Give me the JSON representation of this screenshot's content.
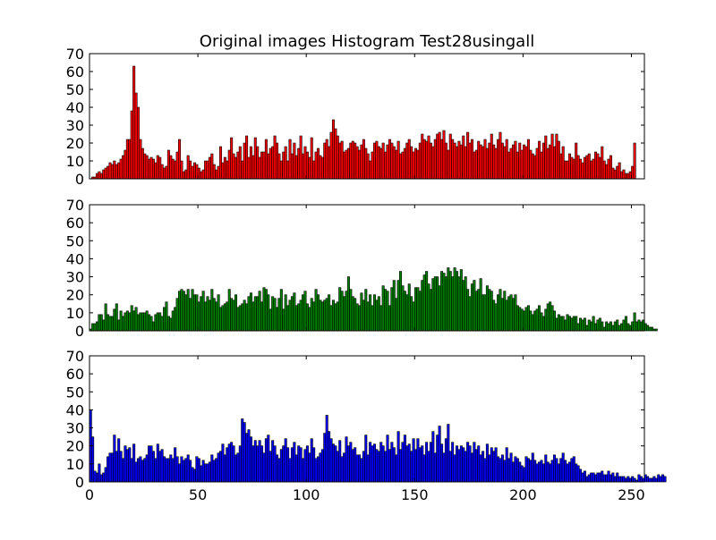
{
  "title": "Original images Histogram Test28usingall",
  "chart_data": [
    {
      "type": "bar",
      "color": "#ff0000",
      "edgecolor": "#000000",
      "xlim": [
        0,
        256
      ],
      "ylim": [
        0,
        70
      ],
      "yticks": [
        "0",
        "10",
        "20",
        "30",
        "40",
        "50",
        "60",
        "70"
      ],
      "xticks": [],
      "values": [
        0,
        1,
        1,
        3,
        4,
        3,
        5,
        6,
        7,
        9,
        8,
        10,
        8,
        9,
        11,
        13,
        16,
        22,
        22,
        38,
        63,
        48,
        40,
        22,
        17,
        14,
        13,
        11,
        12,
        11,
        9,
        13,
        12,
        8,
        6,
        7,
        16,
        13,
        11,
        10,
        15,
        22,
        10,
        4,
        5,
        13,
        10,
        7,
        9,
        8,
        6,
        4,
        5,
        10,
        10,
        12,
        14,
        8,
        5,
        7,
        18,
        9,
        12,
        10,
        16,
        23,
        14,
        12,
        15,
        18,
        10,
        20,
        24,
        12,
        18,
        13,
        23,
        18,
        12,
        15,
        15,
        22,
        14,
        17,
        18,
        24,
        20,
        14,
        10,
        15,
        18,
        10,
        22,
        14,
        20,
        13,
        17,
        24,
        14,
        18,
        15,
        12,
        23,
        10,
        15,
        17,
        13,
        12,
        20,
        22,
        18,
        26,
        33,
        28,
        24,
        20,
        21,
        15,
        16,
        17,
        20,
        21,
        20,
        18,
        16,
        19,
        22,
        17,
        14,
        10,
        15,
        20,
        21,
        18,
        17,
        20,
        15,
        19,
        22,
        20,
        18,
        16,
        21,
        14,
        15,
        17,
        20,
        22,
        18,
        15,
        17,
        16,
        20,
        25,
        22,
        21,
        24,
        20,
        18,
        22,
        25,
        26,
        22,
        27,
        20,
        16,
        25,
        22,
        20,
        18,
        21,
        19,
        24,
        18,
        26,
        20,
        22,
        15,
        16,
        21,
        19,
        18,
        22,
        17,
        20,
        25,
        19,
        17,
        22,
        26,
        20,
        18,
        22,
        15,
        17,
        19,
        21,
        15,
        20,
        16,
        19,
        18,
        22,
        16,
        14,
        13,
        17,
        21,
        15,
        20,
        24,
        17,
        19,
        25,
        18,
        25,
        21,
        14,
        18,
        10,
        10,
        14,
        12,
        11,
        20,
        13,
        11,
        9,
        12,
        13,
        14,
        10,
        11,
        15,
        14,
        12,
        18,
        10,
        8,
        11,
        13,
        6,
        5,
        7,
        9,
        4,
        5,
        3,
        3,
        4,
        7,
        20
      ]
    },
    {
      "type": "bar",
      "color": "#008000",
      "edgecolor": "#000000",
      "xlim": [
        0,
        256
      ],
      "ylim": [
        0,
        70
      ],
      "yticks": [
        "0",
        "10",
        "20",
        "30",
        "40",
        "50",
        "60",
        "70"
      ],
      "xticks": [],
      "values": [
        1,
        4,
        4,
        5,
        9,
        9,
        6,
        15,
        9,
        8,
        8,
        12,
        15,
        6,
        11,
        8,
        10,
        11,
        10,
        14,
        11,
        13,
        9,
        10,
        10,
        10,
        11,
        9,
        8,
        5,
        9,
        10,
        10,
        8,
        13,
        16,
        8,
        7,
        11,
        13,
        18,
        22,
        23,
        22,
        20,
        23,
        18,
        23,
        20,
        20,
        16,
        19,
        22,
        16,
        19,
        17,
        23,
        18,
        16,
        20,
        13,
        14,
        15,
        16,
        23,
        18,
        17,
        20,
        13,
        14,
        15,
        17,
        15,
        19,
        21,
        16,
        19,
        19,
        22,
        16,
        24,
        23,
        20,
        12,
        19,
        18,
        13,
        18,
        23,
        12,
        20,
        14,
        17,
        19,
        21,
        14,
        15,
        17,
        20,
        22,
        15,
        13,
        18,
        16,
        23,
        20,
        17,
        16,
        17,
        18,
        20,
        14,
        17,
        15,
        16,
        24,
        22,
        19,
        22,
        30,
        23,
        19,
        18,
        15,
        14,
        21,
        17,
        23,
        16,
        20,
        14,
        20,
        17,
        19,
        14,
        25,
        23,
        22,
        14,
        24,
        28,
        18,
        28,
        33,
        25,
        22,
        20,
        26,
        19,
        16,
        24,
        24,
        22,
        28,
        31,
        33,
        26,
        23,
        29,
        30,
        30,
        25,
        33,
        32,
        30,
        35,
        33,
        30,
        35,
        33,
        30,
        34,
        28,
        30,
        23,
        19,
        26,
        28,
        22,
        23,
        29,
        20,
        20,
        25,
        23,
        22,
        17,
        15,
        20,
        23,
        18,
        22,
        17,
        19,
        20,
        18,
        20,
        14,
        13,
        12,
        11,
        13,
        14,
        11,
        9,
        11,
        12,
        14,
        10,
        8,
        12,
        15,
        16,
        14,
        11,
        7,
        9,
        8,
        8,
        6,
        9,
        8,
        7,
        8,
        8,
        4,
        7,
        6,
        7,
        3,
        6,
        5,
        8,
        4,
        6,
        7,
        5,
        2,
        5,
        4,
        5,
        3,
        5,
        6,
        3,
        4,
        6,
        8,
        4,
        3,
        5,
        10,
        5,
        6,
        5,
        6,
        4,
        3,
        2,
        2,
        1,
        1
      ]
    },
    {
      "type": "bar",
      "color": "#0000ff",
      "edgecolor": "#000000",
      "xlim": [
        0,
        256
      ],
      "ylim": [
        0,
        70
      ],
      "yticks": [
        "0",
        "10",
        "20",
        "30",
        "40",
        "50",
        "60",
        "70"
      ],
      "xticks": [
        "0",
        "50",
        "100",
        "150",
        "200",
        "250"
      ],
      "values": [
        40,
        25,
        6,
        5,
        10,
        4,
        5,
        8,
        14,
        16,
        16,
        26,
        17,
        24,
        17,
        13,
        20,
        18,
        19,
        13,
        21,
        11,
        13,
        14,
        12,
        13,
        15,
        20,
        20,
        17,
        13,
        21,
        17,
        18,
        14,
        13,
        13,
        15,
        13,
        19,
        14,
        10,
        14,
        12,
        13,
        15,
        12,
        8,
        7,
        14,
        13,
        9,
        12,
        10,
        10,
        11,
        15,
        12,
        13,
        16,
        17,
        21,
        15,
        19,
        21,
        22,
        20,
        15,
        16,
        20,
        35,
        33,
        27,
        29,
        25,
        20,
        23,
        20,
        23,
        20,
        16,
        24,
        26,
        17,
        23,
        20,
        15,
        13,
        18,
        20,
        24,
        19,
        13,
        19,
        22,
        15,
        20,
        19,
        13,
        18,
        20,
        16,
        24,
        19,
        13,
        14,
        16,
        18,
        27,
        37,
        28,
        24,
        21,
        20,
        17,
        23,
        14,
        16,
        25,
        20,
        22,
        18,
        19,
        15,
        15,
        13,
        17,
        26,
        15,
        22,
        20,
        21,
        18,
        17,
        22,
        20,
        17,
        26,
        18,
        22,
        19,
        15,
        28,
        18,
        22,
        26,
        20,
        21,
        17,
        24,
        18,
        24,
        19,
        20,
        15,
        22,
        17,
        22,
        28,
        16,
        26,
        31,
        21,
        16,
        24,
        32,
        17,
        22,
        15,
        20,
        18,
        20,
        19,
        17,
        22,
        20,
        16,
        22,
        18,
        20,
        15,
        17,
        13,
        21,
        15,
        19,
        17,
        19,
        14,
        13,
        15,
        12,
        19,
        13,
        16,
        11,
        14,
        13,
        11,
        9,
        8,
        14,
        13,
        12,
        16,
        12,
        10,
        11,
        12,
        10,
        15,
        11,
        10,
        12,
        15,
        13,
        10,
        13,
        16,
        12,
        10,
        11,
        13,
        14,
        10,
        9,
        7,
        5,
        6,
        3,
        4,
        5,
        5,
        4,
        5,
        5,
        6,
        4,
        4,
        6,
        4,
        5,
        3,
        5,
        3,
        3,
        3,
        2,
        3,
        2,
        3,
        2,
        1,
        4,
        3,
        2,
        4,
        3,
        2,
        2,
        3,
        2,
        4,
        3,
        4,
        3
      ]
    }
  ]
}
